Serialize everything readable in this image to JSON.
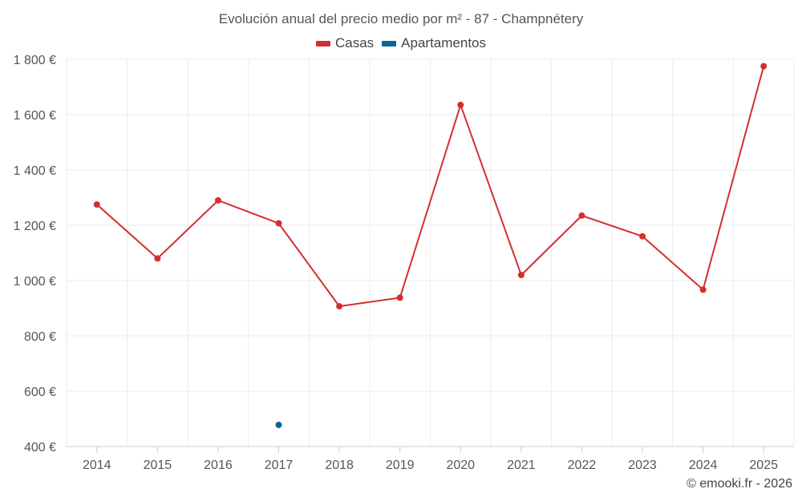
{
  "chart_data": {
    "type": "line",
    "title": "Evolución anual del precio medio por m² - 87 - Champnétery",
    "xlabel": "",
    "ylabel": "",
    "categories": [
      "2014",
      "2015",
      "2016",
      "2017",
      "2018",
      "2019",
      "2020",
      "2021",
      "2022",
      "2023",
      "2024",
      "2025"
    ],
    "ylim": [
      400,
      1800
    ],
    "yticks": [
      400,
      600,
      800,
      1000,
      1200,
      1400,
      1600,
      1800
    ],
    "ytick_labels": [
      "400 €",
      "600 €",
      "800 €",
      "1 000 €",
      "1 200 €",
      "1 400 €",
      "1 600 €",
      "1 800 €"
    ],
    "grid": true,
    "legend_position": "top-center",
    "series": [
      {
        "name": "Casas",
        "color": "#d32f2f",
        "values": [
          1275,
          1080,
          1290,
          1207,
          907,
          938,
          1635,
          1020,
          1235,
          1160,
          967,
          1775
        ]
      },
      {
        "name": "Apartamentos",
        "color": "#0f6396",
        "values": [
          null,
          null,
          null,
          478,
          null,
          null,
          null,
          null,
          null,
          null,
          null,
          null
        ]
      }
    ]
  },
  "credit": "© emooki.fr - 2026"
}
